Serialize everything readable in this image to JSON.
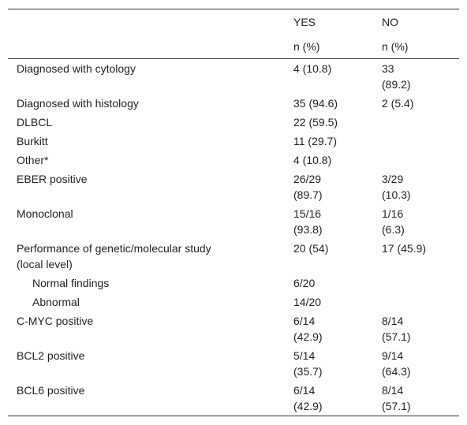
{
  "header": {
    "yes": "YES",
    "no": "NO",
    "yes_unit": "n (%)",
    "no_unit": "n (%)"
  },
  "table": {
    "rows": [
      {
        "label": [
          "Diagnosed with cytology"
        ],
        "yes": [
          "4 (10.8)"
        ],
        "no": [
          "33",
          "(89.2)"
        ]
      },
      {
        "label": [
          "Diagnosed with histology"
        ],
        "yes": [
          "35 (94.6)"
        ],
        "no": [
          "2 (5.4)"
        ]
      },
      {
        "label": [
          "DLBCL"
        ],
        "yes": [
          "22 (59.5)"
        ],
        "no": []
      },
      {
        "label": [
          "Burkitt"
        ],
        "yes": [
          "11 (29.7)"
        ],
        "no": []
      },
      {
        "label": [
          "Other*"
        ],
        "yes": [
          "4 (10.8)"
        ],
        "no": []
      },
      {
        "label": [
          "EBER positive"
        ],
        "yes": [
          "26/29",
          "(89.7)"
        ],
        "no": [
          "3/29",
          "(10.3)"
        ]
      },
      {
        "label": [
          "Monoclonal"
        ],
        "yes": [
          "15/16",
          "(93.8)"
        ],
        "no": [
          "1/16",
          "(6.3)"
        ]
      },
      {
        "label": [
          "Performance of genetic/molecular study",
          "(local level)"
        ],
        "yes": [
          "20 (54)"
        ],
        "no": [
          "17 (45.9)"
        ]
      },
      {
        "label": [
          "Normal findings"
        ],
        "indent": true,
        "yes": [
          "6/20"
        ],
        "no": []
      },
      {
        "label": [
          "Abnormal"
        ],
        "indent": true,
        "yes": [
          "14/20"
        ],
        "no": []
      },
      {
        "label": [
          "C-MYC positive"
        ],
        "yes": [
          "6/14",
          "(42.9)"
        ],
        "no": [
          "8/14",
          "(57.1)"
        ]
      },
      {
        "label": [
          "BCL2 positive"
        ],
        "yes": [
          "5/14",
          "(35.7)"
        ],
        "no": [
          "9/14",
          "(64.3)"
        ]
      },
      {
        "label": [
          "BCL6 positive"
        ],
        "yes": [
          "6/14",
          "(42.9)"
        ],
        "no": [
          "8/14",
          "(57.1)"
        ]
      }
    ]
  }
}
